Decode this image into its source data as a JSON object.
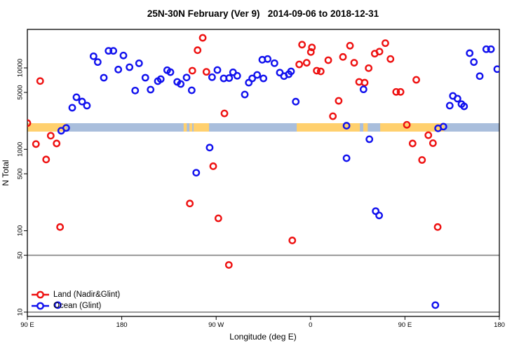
{
  "title": "25N-30N February (Ver 9)   2014-09-06 to 2018-12-31",
  "axes": {
    "x": {
      "label": "Longitude (deg E)",
      "ticks": [
        "90 E",
        "180",
        "90 W",
        "0",
        "90 E",
        "180"
      ],
      "tick_lons": [
        90,
        180,
        270,
        360,
        450,
        540
      ]
    },
    "y": {
      "label": "N Total",
      "scale": "log",
      "ticks": [
        "10000",
        "5000",
        "1000",
        "500",
        "100",
        "50",
        "10"
      ],
      "tick_values": [
        10000,
        5000,
        1000,
        500,
        100,
        50,
        10
      ]
    }
  },
  "legend": {
    "items": [
      {
        "label": "Land (Nadir&Glint)",
        "color": "#ee1111"
      },
      {
        "label": "Ocean (Glint)",
        "color": "#1111ee"
      }
    ]
  },
  "reference_lines": {
    "values": [
      50,
      10
    ],
    "color": "#8a8a8a"
  },
  "map_band": {
    "ocean_color": "#a9bedc",
    "land_color": "#ffd06e",
    "n_range": [
      1650,
      2100
    ],
    "land_segments_lon": [
      [
        90,
        127
      ],
      [
        239,
        242
      ],
      [
        244.5,
        247.2
      ],
      [
        248.5,
        263.2
      ],
      [
        346.8,
        407.0
      ],
      [
        410.3,
        414.5
      ],
      [
        426.4,
        487.2
      ]
    ]
  },
  "chart_data": {
    "type": "scatter",
    "title": "25N-30N February (Ver 9)   2014-09-06 to 2018-12-31",
    "xlabel": "Longitude (deg E)",
    "ylabel": "N Total",
    "x_axis_note": "longitude plotted eastward from 90E: 90E,180,90W,0,90E,180 mapped to 90..540",
    "xlim": [
      90,
      540
    ],
    "ylim": [
      8.9,
      29700
    ],
    "yscale": "log",
    "legend_position": "bottom-left",
    "series": [
      {
        "name": "Land (Nadir&Glint)",
        "color": "#ee1111",
        "points": [
          [
            102.2,
            6900
          ],
          [
            90,
            2100
          ],
          [
            112.3,
            1470
          ],
          [
            98.2,
            1160
          ],
          [
            117.9,
            1180
          ],
          [
            107.9,
            750
          ],
          [
            121.2,
            111
          ],
          [
            257.2,
            23400
          ],
          [
            252.3,
            16500
          ],
          [
            247.3,
            9240
          ],
          [
            260.7,
            8940
          ],
          [
            277.9,
            2760
          ],
          [
            351.9,
            19300
          ],
          [
            361.3,
            17850
          ],
          [
            360.3,
            15670
          ],
          [
            349.2,
            11040
          ],
          [
            356.3,
            11560
          ],
          [
            365.9,
            9240
          ],
          [
            369.7,
            9060
          ],
          [
            376.9,
            12440
          ],
          [
            390.9,
            13640
          ],
          [
            397.6,
            18730
          ],
          [
            401.6,
            11560
          ],
          [
            406.3,
            6730
          ],
          [
            411.6,
            6590
          ],
          [
            415.4,
            9930
          ],
          [
            421.2,
            14960
          ],
          [
            425.7,
            15850
          ],
          [
            431.3,
            20140
          ],
          [
            436.2,
            12860
          ],
          [
            441.6,
            5070
          ],
          [
            445.8,
            5070
          ],
          [
            460.8,
            7140
          ],
          [
            386.8,
            3940
          ],
          [
            381.3,
            2550
          ],
          [
            451.8,
            2000
          ],
          [
            472.3,
            1490
          ],
          [
            457.3,
            1180
          ],
          [
            476.7,
            1190
          ],
          [
            466.3,
            740
          ],
          [
            481.2,
            111
          ],
          [
            342.6,
            76
          ],
          [
            282.1,
            38
          ],
          [
            244.9,
            216
          ],
          [
            267.2,
            620
          ],
          [
            272.1,
            142
          ]
        ]
      },
      {
        "name": "Ocean (Glint)",
        "color": "#1111ee",
        "points": [
          [
            153.1,
            13900
          ],
          [
            157.1,
            11800
          ],
          [
            167.4,
            16200
          ],
          [
            172.0,
            16200
          ],
          [
            181.6,
            14200
          ],
          [
            176.7,
            9550
          ],
          [
            187.4,
            10200
          ],
          [
            196.5,
            11400
          ],
          [
            162.9,
            7580
          ],
          [
            202.5,
            7580
          ],
          [
            192.8,
            5270
          ],
          [
            207.5,
            5410
          ],
          [
            214.4,
            6870
          ],
          [
            217.2,
            7280
          ],
          [
            223.3,
            9370
          ],
          [
            226.4,
            8870
          ],
          [
            232.9,
            6730
          ],
          [
            236.2,
            6340
          ],
          [
            241.8,
            7620
          ],
          [
            246.7,
            5310
          ],
          [
            266.1,
            7690
          ],
          [
            271.2,
            9420
          ],
          [
            277.2,
            7430
          ],
          [
            282.4,
            7500
          ],
          [
            286.1,
            8830
          ],
          [
            290.1,
            8000
          ],
          [
            297.3,
            4710
          ],
          [
            301.1,
            6590
          ],
          [
            304.4,
            7430
          ],
          [
            309.1,
            8200
          ],
          [
            314.0,
            12600
          ],
          [
            315.1,
            7430
          ],
          [
            319.1,
            12860
          ],
          [
            325.6,
            11430
          ],
          [
            330.7,
            8750
          ],
          [
            334.7,
            7930
          ],
          [
            339.2,
            8360
          ],
          [
            341.4,
            9060
          ],
          [
            345.9,
            3850
          ],
          [
            410.5,
            5450
          ],
          [
            394.3,
            1950
          ],
          [
            416.1,
            1330
          ],
          [
            394.3,
            778
          ],
          [
            422.1,
            174
          ],
          [
            425.4,
            154
          ],
          [
            481.6,
            1810
          ],
          [
            486.7,
            1900
          ],
          [
            479.0,
            12.2
          ],
          [
            119.0,
            12.2
          ],
          [
            511.7,
            15170
          ],
          [
            515.7,
            11790
          ],
          [
            527.5,
            16980
          ],
          [
            532.0,
            16980
          ],
          [
            538.0,
            9660
          ],
          [
            521.3,
            7930
          ],
          [
            492.7,
            3440
          ],
          [
            495.7,
            4530
          ],
          [
            500.1,
            4190
          ],
          [
            503.9,
            3590
          ],
          [
            506.4,
            3370
          ],
          [
            122.3,
            1690
          ],
          [
            127.0,
            1830
          ],
          [
            251.0,
            516
          ],
          [
            263.8,
            1050
          ],
          [
            136.8,
            4360
          ],
          [
            142.2,
            3860
          ],
          [
            146.8,
            3440
          ],
          [
            132.8,
            3240
          ]
        ]
      }
    ]
  }
}
